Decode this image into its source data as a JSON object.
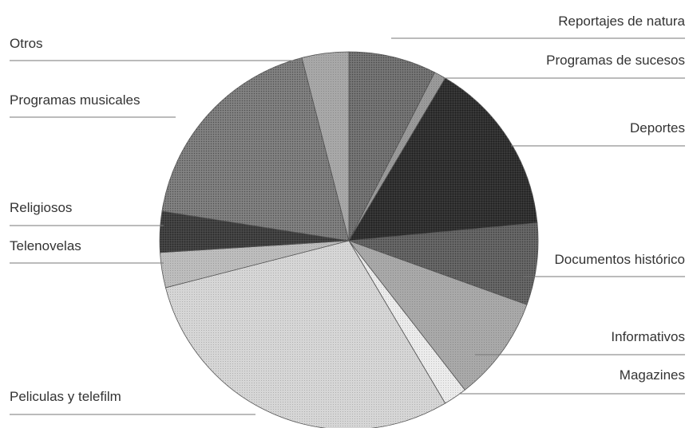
{
  "chart_data": {
    "type": "pie",
    "title": "",
    "slices": [
      {
        "label": "Reportajes de natura",
        "value": 7.5,
        "color": "#6e6e6e",
        "pattern": "dense"
      },
      {
        "label": "Programas de sucesos",
        "value": 1.0,
        "color": "#9a9a9a",
        "pattern": "light"
      },
      {
        "label": "Deportes",
        "value": 15.0,
        "color": "#2c2c2c",
        "pattern": "dense"
      },
      {
        "label": "Documentos histórico",
        "value": 7.0,
        "color": "#5f5f5f",
        "pattern": "dense"
      },
      {
        "label": "Informativos",
        "value": 9.0,
        "color": "#a9a9a9",
        "pattern": "light"
      },
      {
        "label": "Magazines",
        "value": 2.0,
        "color": "#ececec",
        "pattern": "light"
      },
      {
        "label": "Peliculas y telefilm",
        "value": 29.5,
        "color": "#d6d6d6",
        "pattern": "light"
      },
      {
        "label": "Telenovelas",
        "value": 3.0,
        "color": "#bdbdbd",
        "pattern": "light"
      },
      {
        "label": "Religiosos",
        "value": 3.5,
        "color": "#3c3c3c",
        "pattern": "dense"
      },
      {
        "label": "Programas musicales",
        "value": 18.5,
        "color": "#7a7a7a",
        "pattern": "dense"
      },
      {
        "label": "Otros",
        "value": 4.0,
        "color": "#a8a8a8",
        "pattern": "light"
      }
    ],
    "start_angle_deg": 0,
    "direction": "clockwise",
    "legend": "none"
  }
}
